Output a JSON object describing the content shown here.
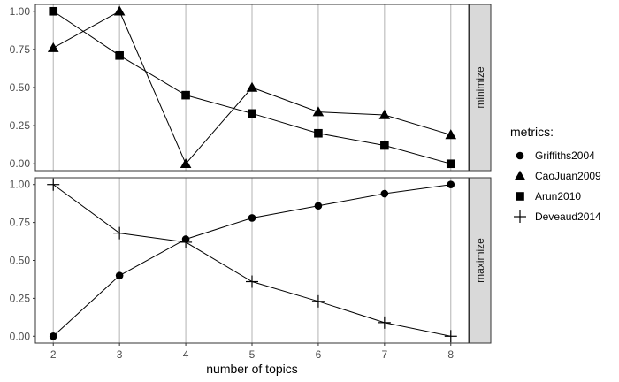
{
  "chart_data": {
    "type": "line",
    "x": [
      2,
      3,
      4,
      5,
      6,
      7,
      8
    ],
    "xlabel": "number of topics",
    "ylim": [
      0,
      1
    ],
    "yticks": [
      "0.00",
      "0.25",
      "0.50",
      "0.75",
      "1.00"
    ],
    "grid": "vertical",
    "legend": {
      "title": "metrics:",
      "placement": "right",
      "entries": [
        {
          "label": "Griffiths2004",
          "marker": "circle"
        },
        {
          "label": "CaoJuan2009",
          "marker": "triangle"
        },
        {
          "label": "Arun2010",
          "marker": "square"
        },
        {
          "label": "Deveaud2014",
          "marker": "plus"
        }
      ]
    },
    "panels": [
      {
        "strip": "minimize",
        "series": [
          {
            "metric": "CaoJuan2009",
            "marker": "triangle",
            "values": [
              0.76,
              1.0,
              0.0,
              0.5,
              0.34,
              0.32,
              0.19
            ]
          },
          {
            "metric": "Arun2010",
            "marker": "square",
            "values": [
              1.0,
              0.71,
              0.45,
              0.33,
              0.2,
              0.12,
              0.0
            ]
          }
        ]
      },
      {
        "strip": "maximize",
        "series": [
          {
            "metric": "Griffiths2004",
            "marker": "circle",
            "values": [
              0.0,
              0.4,
              0.64,
              0.78,
              0.86,
              0.94,
              1.0
            ]
          },
          {
            "metric": "Deveaud2014",
            "marker": "plus",
            "values": [
              1.0,
              0.68,
              0.62,
              0.36,
              0.23,
              0.09,
              0.0
            ]
          }
        ]
      }
    ]
  }
}
